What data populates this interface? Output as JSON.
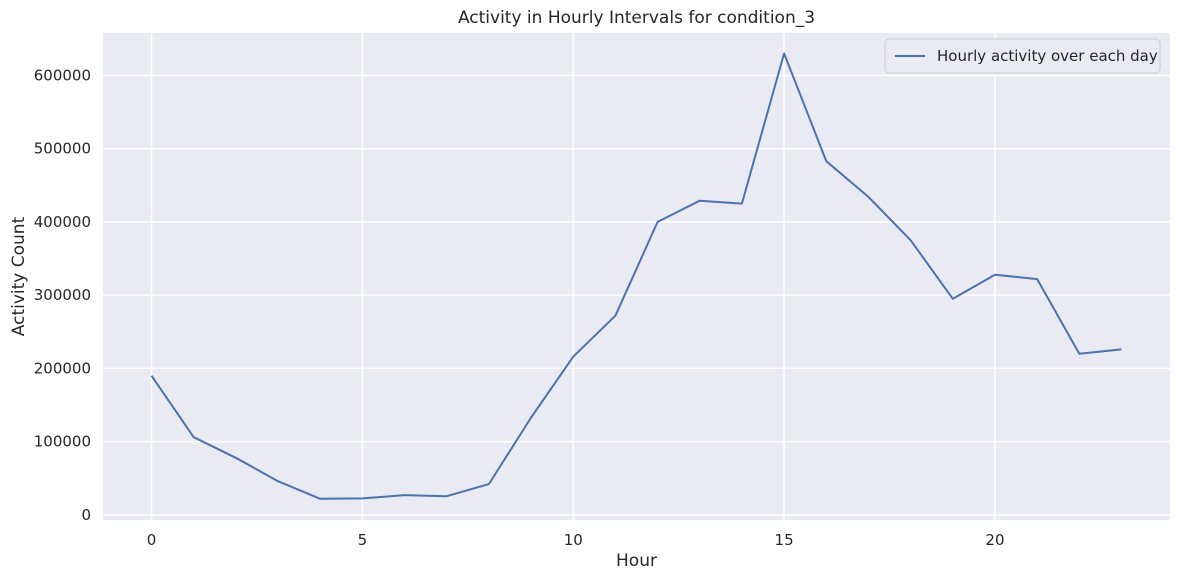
{
  "chart_data": {
    "type": "line",
    "title": "Activity in Hourly Intervals for condition_3",
    "xlabel": "Hour",
    "ylabel": "Activity Count",
    "xlim": [
      -1.15,
      24.15
    ],
    "ylim": [
      -7000,
      658000
    ],
    "xticks": [
      0,
      5,
      10,
      15,
      20
    ],
    "yticks": [
      0,
      100000,
      200000,
      300000,
      400000,
      500000,
      600000
    ],
    "grid": true,
    "legend": "top-right",
    "colors": {
      "background": "#EAEAF2",
      "grid": "#FFFFFF",
      "line": "#4C72B0",
      "text": "#262626"
    },
    "series": [
      {
        "name": "Hourly activity over each day",
        "x": [
          0,
          1,
          2,
          3,
          4,
          5,
          6,
          7,
          8,
          9,
          10,
          11,
          12,
          13,
          14,
          15,
          16,
          17,
          18,
          19,
          20,
          21,
          22,
          23
        ],
        "y": [
          190000,
          106000,
          78000,
          46000,
          22000,
          22500,
          27000,
          25500,
          42000,
          133000,
          216000,
          272000,
          400000,
          429000,
          425000,
          630000,
          483000,
          434000,
          375000,
          295000,
          328000,
          322000,
          220000,
          226000
        ]
      }
    ]
  }
}
